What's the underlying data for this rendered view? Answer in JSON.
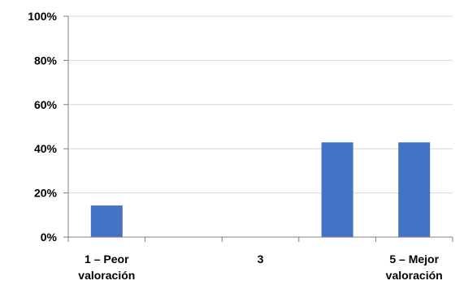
{
  "chart_data": {
    "type": "bar",
    "categories": [
      "1",
      "2",
      "3",
      "4",
      "5"
    ],
    "category_labels": [
      [
        "1 – Peor",
        "valoración"
      ],
      [],
      [
        "3"
      ],
      [],
      [
        "5 – Mejor",
        "valoración"
      ]
    ],
    "values": [
      14.3,
      0,
      0,
      42.9,
      42.9
    ],
    "ylim": [
      0,
      100
    ],
    "yticks": [
      0,
      20,
      40,
      60,
      80,
      100
    ],
    "ytick_format": "{v}%",
    "grid": true,
    "colors": {
      "bar": "#4472C4",
      "grid": "#D9D9D9",
      "axis": "#808080"
    }
  }
}
